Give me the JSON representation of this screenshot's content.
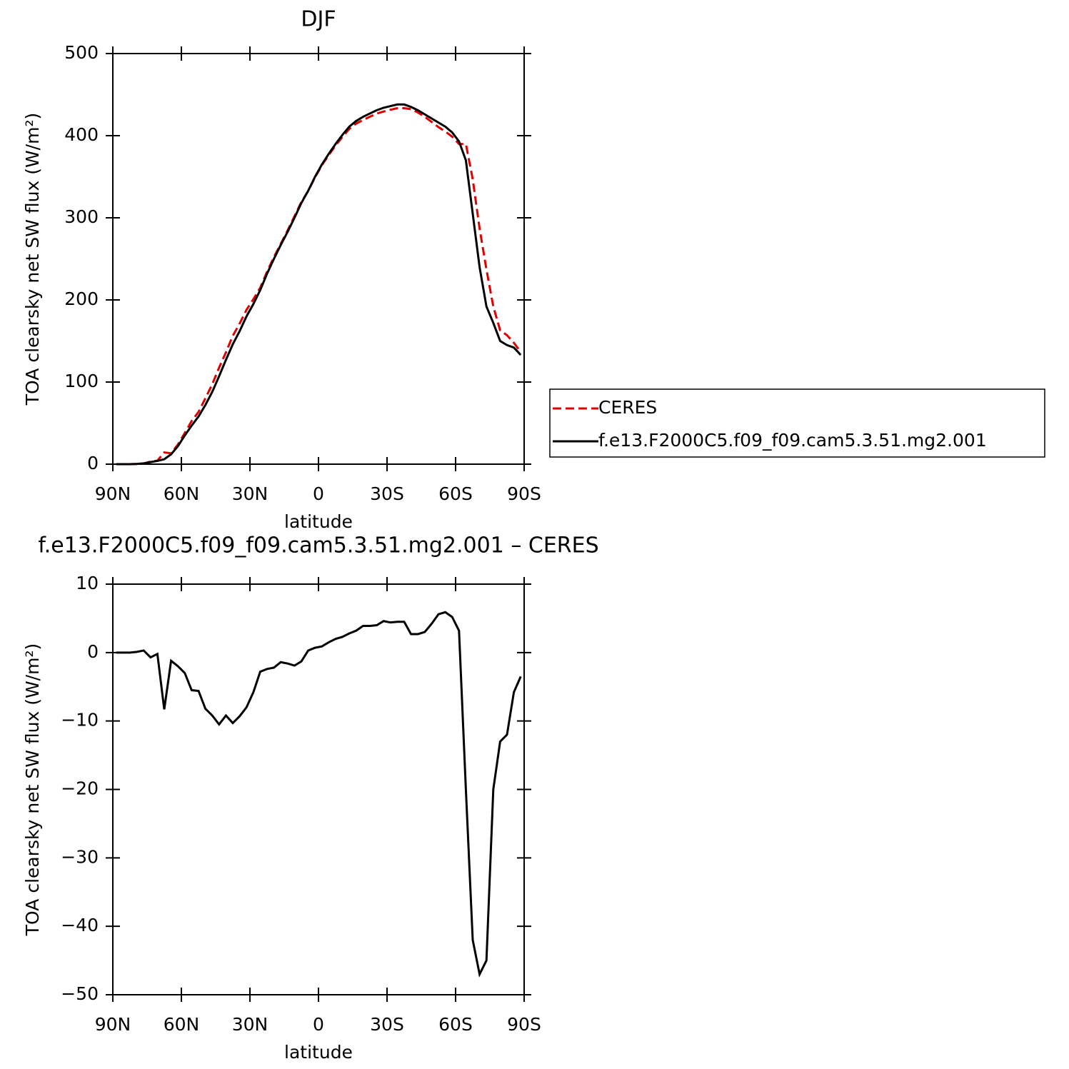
{
  "chart_data": [
    {
      "type": "line",
      "title": "DJF",
      "x_label": "latitude",
      "y_label": "TOA clearsky net SW flux (W/m²)",
      "xlim": [
        90,
        -90
      ],
      "xticks": [
        {
          "value": 90,
          "label": "90N"
        },
        {
          "value": 60,
          "label": "60N"
        },
        {
          "value": 30,
          "label": "30N"
        },
        0,
        {
          "value": -30,
          "label": "30S"
        },
        {
          "value": -60,
          "label": "60S"
        },
        {
          "value": -90,
          "label": "90S"
        }
      ],
      "ylim": [
        0,
        500
      ],
      "yticks": [
        0,
        100,
        200,
        300,
        400,
        500
      ],
      "x": [
        88.5,
        85.5,
        82.5,
        79.5,
        76.5,
        73.5,
        70.5,
        67.5,
        64.5,
        61.5,
        58.5,
        55.5,
        52.5,
        49.5,
        46.5,
        43.5,
        40.5,
        37.5,
        34.5,
        31.5,
        28.5,
        25.5,
        22.5,
        19.5,
        16.5,
        13.5,
        10.5,
        7.5,
        4.5,
        1.5,
        -1.5,
        -4.5,
        -7.5,
        -10.5,
        -13.5,
        -16.5,
        -19.5,
        -22.5,
        -25.5,
        -28.5,
        -31.5,
        -34.5,
        -37.5,
        -40.5,
        -43.5,
        -46.5,
        -49.5,
        -52.5,
        -55.5,
        -58.5,
        -61.5,
        -64.5,
        -67.5,
        -70.5,
        -73.5,
        -76.5,
        -79.5,
        -82.5,
        -85.5,
        -88.5
      ],
      "series": [
        {
          "name": "CERES",
          "color": "#e00000",
          "dashed": true,
          "values": [
            0,
            0,
            0,
            0.2,
            0.7,
            3.2,
            4.2,
            14.3,
            13.2,
            24,
            38,
            52.5,
            63.6,
            80.2,
            97.2,
            117.5,
            136.2,
            156.3,
            171.3,
            188,
            200.8,
            214.8,
            234.4,
            252.2,
            268.4,
            284.6,
            301.9,
            319.3,
            332.7,
            349.3,
            364.1,
            376.5,
            388,
            398.7,
            408.2,
            414.8,
            419.1,
            423.1,
            427,
            429.4,
            431.6,
            433.5,
            433.5,
            432.3,
            428.3,
            423,
            416.8,
            410.4,
            405.1,
            398.8,
            389.8,
            390,
            347,
            287,
            237,
            192,
            163,
            157,
            147.8,
            136.5
          ]
        },
        {
          "name": "f.e13.F2000C5.f09_f09.cam5.3.51.mg2.001",
          "color": "#000000",
          "dashed": false,
          "values": [
            0,
            0,
            0,
            0.3,
            1,
            2.5,
            4,
            6,
            12,
            22,
            35,
            47,
            58,
            72,
            88,
            107,
            127,
            146,
            162,
            180,
            195,
            212,
            232,
            250,
            267,
            283,
            300,
            318,
            333,
            350,
            365,
            378,
            390,
            401,
            411,
            418,
            423,
            427,
            431,
            434,
            436,
            438,
            438,
            435,
            431,
            426,
            421,
            416,
            411,
            404,
            393,
            370,
            305,
            240,
            192,
            172,
            150,
            145,
            142,
            133
          ]
        }
      ]
    },
    {
      "type": "line",
      "title": "f.e13.F2000C5.f09_f09.cam5.3.51.mg2.001 – CERES",
      "x_label": "latitude",
      "y_label": "TOA clearsky net SW flux (W/m²)",
      "xlim": [
        90,
        -90
      ],
      "xticks": [
        {
          "value": 90,
          "label": "90N"
        },
        {
          "value": 60,
          "label": "60N"
        },
        {
          "value": 30,
          "label": "30N"
        },
        0,
        {
          "value": -30,
          "label": "30S"
        },
        {
          "value": -60,
          "label": "60S"
        },
        {
          "value": -90,
          "label": "90S"
        }
      ],
      "ylim": [
        -50,
        10
      ],
      "yticks": [
        10,
        0,
        {
          "value": -10,
          "label": "−10"
        },
        {
          "value": -20,
          "label": "−20"
        },
        {
          "value": -30,
          "label": "−30"
        },
        {
          "value": -40,
          "label": "−40"
        },
        {
          "value": -50,
          "label": "−50"
        }
      ],
      "x": [
        88.5,
        85.5,
        82.5,
        79.5,
        76.5,
        73.5,
        70.5,
        67.5,
        64.5,
        61.5,
        58.5,
        55.5,
        52.5,
        49.5,
        46.5,
        43.5,
        40.5,
        37.5,
        34.5,
        31.5,
        28.5,
        25.5,
        22.5,
        19.5,
        16.5,
        13.5,
        10.5,
        7.5,
        4.5,
        1.5,
        -1.5,
        -4.5,
        -7.5,
        -10.5,
        -13.5,
        -16.5,
        -19.5,
        -22.5,
        -25.5,
        -28.5,
        -31.5,
        -34.5,
        -37.5,
        -40.5,
        -43.5,
        -46.5,
        -49.5,
        -52.5,
        -55.5,
        -58.5,
        -61.5,
        -64.5,
        -67.5,
        -70.5,
        -73.5,
        -76.5,
        -79.5,
        -82.5,
        -85.5,
        -88.5
      ],
      "series": [
        {
          "color": "#000000",
          "dashed": false,
          "values": [
            0,
            0,
            0,
            0.1,
            0.3,
            -0.7,
            -0.2,
            -8.3,
            -1.2,
            -2,
            -3,
            -5.5,
            -5.6,
            -8.2,
            -9.2,
            -10.5,
            -9.2,
            -10.3,
            -9.3,
            -8,
            -5.8,
            -2.8,
            -2.4,
            -2.2,
            -1.4,
            -1.6,
            -1.9,
            -1.3,
            0.3,
            0.7,
            0.9,
            1.5,
            2,
            2.3,
            2.8,
            3.2,
            3.9,
            3.9,
            4,
            4.6,
            4.4,
            4.5,
            4.5,
            2.7,
            2.7,
            3,
            4.2,
            5.6,
            5.9,
            5.2,
            3.2,
            -20,
            -42,
            -47,
            -45,
            -20,
            -13,
            -12,
            -5.8,
            -3.5
          ]
        }
      ]
    }
  ]
}
